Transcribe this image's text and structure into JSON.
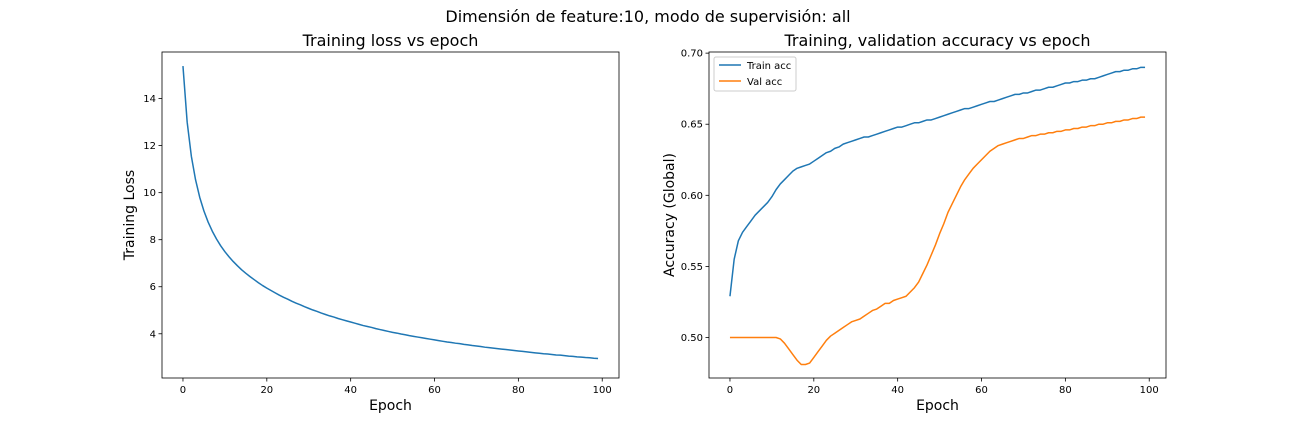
{
  "suptitle": "Dimensión de feature:10, modo de supervisión: all",
  "chart_data": [
    {
      "type": "line",
      "title": "Training loss vs epoch",
      "xlabel": "Epoch",
      "ylabel": "Training Loss",
      "xlim": [
        -5,
        104
      ],
      "ylim": [
        2.12,
        15.98
      ],
      "xticks": [
        0,
        20,
        40,
        60,
        80,
        100
      ],
      "yticks": [
        4,
        6,
        8,
        10,
        12,
        14
      ],
      "ytick_decimals": 0,
      "grid": false,
      "legend": null,
      "series": [
        {
          "color": "#1f77b4",
          "x": [
            0,
            1,
            2,
            3,
            4,
            5,
            6,
            7,
            8,
            9,
            10,
            11,
            12,
            13,
            14,
            15,
            16,
            17,
            18,
            19,
            20,
            21,
            22,
            23,
            24,
            25,
            26,
            27,
            28,
            29,
            30,
            31,
            32,
            33,
            34,
            35,
            36,
            37,
            38,
            39,
            40,
            41,
            42,
            43,
            44,
            45,
            46,
            47,
            48,
            49,
            50,
            51,
            52,
            53,
            54,
            55,
            56,
            57,
            58,
            59,
            60,
            61,
            62,
            63,
            64,
            65,
            66,
            67,
            68,
            69,
            70,
            71,
            72,
            73,
            74,
            75,
            76,
            77,
            78,
            79,
            80,
            81,
            82,
            83,
            84,
            85,
            86,
            87,
            88,
            89,
            90,
            91,
            92,
            93,
            94,
            95,
            96,
            97,
            98,
            99
          ],
          "values": [
            15.38,
            13.0,
            11.55,
            10.55,
            9.8,
            9.22,
            8.75,
            8.36,
            8.03,
            7.74,
            7.49,
            7.27,
            7.07,
            6.89,
            6.72,
            6.57,
            6.43,
            6.3,
            6.17,
            6.05,
            5.94,
            5.84,
            5.74,
            5.64,
            5.55,
            5.47,
            5.38,
            5.3,
            5.23,
            5.15,
            5.08,
            5.01,
            4.95,
            4.88,
            4.82,
            4.76,
            4.71,
            4.65,
            4.6,
            4.55,
            4.5,
            4.45,
            4.4,
            4.35,
            4.31,
            4.27,
            4.22,
            4.18,
            4.14,
            4.1,
            4.06,
            4.03,
            3.99,
            3.96,
            3.92,
            3.89,
            3.86,
            3.83,
            3.8,
            3.77,
            3.74,
            3.71,
            3.68,
            3.65,
            3.63,
            3.6,
            3.58,
            3.55,
            3.53,
            3.5,
            3.48,
            3.46,
            3.43,
            3.41,
            3.39,
            3.37,
            3.35,
            3.33,
            3.31,
            3.29,
            3.27,
            3.25,
            3.23,
            3.21,
            3.19,
            3.17,
            3.15,
            3.14,
            3.12,
            3.1,
            3.09,
            3.07,
            3.05,
            3.04,
            3.02,
            3.01,
            2.99,
            2.98,
            2.96,
            2.95
          ]
        }
      ]
    },
    {
      "type": "line",
      "title": "Training, validation accuracy vs epoch",
      "xlabel": "Epoch",
      "ylabel": "Accuracy (Global)",
      "xlim": [
        -5,
        104
      ],
      "ylim": [
        0.4715,
        0.7008
      ],
      "xticks": [
        0,
        20,
        40,
        60,
        80,
        100
      ],
      "yticks": [
        0.5,
        0.55,
        0.6,
        0.65,
        0.7
      ],
      "ytick_decimals": 2,
      "grid": false,
      "legend": "upper-left",
      "series": [
        {
          "name": "Train acc",
          "color": "#1f77b4",
          "x": [
            0,
            1,
            2,
            3,
            4,
            5,
            6,
            7,
            8,
            9,
            10,
            11,
            12,
            13,
            14,
            15,
            16,
            17,
            18,
            19,
            20,
            21,
            22,
            23,
            24,
            25,
            26,
            27,
            28,
            29,
            30,
            31,
            32,
            33,
            34,
            35,
            36,
            37,
            38,
            39,
            40,
            41,
            42,
            43,
            44,
            45,
            46,
            47,
            48,
            49,
            50,
            51,
            52,
            53,
            54,
            55,
            56,
            57,
            58,
            59,
            60,
            61,
            62,
            63,
            64,
            65,
            66,
            67,
            68,
            69,
            70,
            71,
            72,
            73,
            74,
            75,
            76,
            77,
            78,
            79,
            80,
            81,
            82,
            83,
            84,
            85,
            86,
            87,
            88,
            89,
            90,
            91,
            92,
            93,
            94,
            95,
            96,
            97,
            98,
            99
          ],
          "values": [
            0.529,
            0.555,
            0.568,
            0.574,
            0.578,
            0.582,
            0.586,
            0.589,
            0.592,
            0.595,
            0.599,
            0.604,
            0.608,
            0.611,
            0.614,
            0.617,
            0.619,
            0.62,
            0.621,
            0.622,
            0.624,
            0.626,
            0.628,
            0.63,
            0.631,
            0.633,
            0.634,
            0.636,
            0.637,
            0.638,
            0.639,
            0.64,
            0.641,
            0.641,
            0.642,
            0.643,
            0.644,
            0.645,
            0.646,
            0.647,
            0.648,
            0.648,
            0.649,
            0.65,
            0.651,
            0.651,
            0.652,
            0.653,
            0.653,
            0.654,
            0.655,
            0.656,
            0.657,
            0.658,
            0.659,
            0.66,
            0.661,
            0.661,
            0.662,
            0.663,
            0.664,
            0.665,
            0.666,
            0.666,
            0.667,
            0.668,
            0.669,
            0.67,
            0.671,
            0.671,
            0.672,
            0.672,
            0.673,
            0.674,
            0.674,
            0.675,
            0.676,
            0.676,
            0.677,
            0.678,
            0.679,
            0.679,
            0.68,
            0.68,
            0.681,
            0.681,
            0.682,
            0.682,
            0.683,
            0.684,
            0.685,
            0.686,
            0.687,
            0.687,
            0.688,
            0.688,
            0.689,
            0.689,
            0.69,
            0.69
          ]
        },
        {
          "name": "Val acc",
          "color": "#ff7f0e",
          "x": [
            0,
            1,
            2,
            3,
            4,
            5,
            6,
            7,
            8,
            9,
            10,
            11,
            12,
            13,
            14,
            15,
            16,
            17,
            18,
            19,
            20,
            21,
            22,
            23,
            24,
            25,
            26,
            27,
            28,
            29,
            30,
            31,
            32,
            33,
            34,
            35,
            36,
            37,
            38,
            39,
            40,
            41,
            42,
            43,
            44,
            45,
            46,
            47,
            48,
            49,
            50,
            51,
            52,
            53,
            54,
            55,
            56,
            57,
            58,
            59,
            60,
            61,
            62,
            63,
            64,
            65,
            66,
            67,
            68,
            69,
            70,
            71,
            72,
            73,
            74,
            75,
            76,
            77,
            78,
            79,
            80,
            81,
            82,
            83,
            84,
            85,
            86,
            87,
            88,
            89,
            90,
            91,
            92,
            93,
            94,
            95,
            96,
            97,
            98,
            99
          ],
          "values": [
            0.5,
            0.5,
            0.5,
            0.5,
            0.5,
            0.5,
            0.5,
            0.5,
            0.5,
            0.5,
            0.5,
            0.5,
            0.499,
            0.496,
            0.492,
            0.488,
            0.484,
            0.481,
            0.481,
            0.482,
            0.486,
            0.49,
            0.494,
            0.498,
            0.501,
            0.503,
            0.505,
            0.507,
            0.509,
            0.511,
            0.512,
            0.513,
            0.515,
            0.517,
            0.519,
            0.52,
            0.522,
            0.524,
            0.524,
            0.526,
            0.527,
            0.528,
            0.529,
            0.532,
            0.535,
            0.539,
            0.545,
            0.551,
            0.558,
            0.565,
            0.573,
            0.58,
            0.588,
            0.594,
            0.6,
            0.606,
            0.611,
            0.615,
            0.619,
            0.622,
            0.625,
            0.628,
            0.631,
            0.633,
            0.635,
            0.636,
            0.637,
            0.638,
            0.639,
            0.64,
            0.64,
            0.641,
            0.642,
            0.642,
            0.643,
            0.643,
            0.644,
            0.644,
            0.645,
            0.645,
            0.646,
            0.646,
            0.647,
            0.647,
            0.648,
            0.648,
            0.649,
            0.649,
            0.65,
            0.65,
            0.651,
            0.651,
            0.652,
            0.652,
            0.653,
            0.653,
            0.654,
            0.654,
            0.655,
            0.655
          ]
        }
      ]
    }
  ]
}
